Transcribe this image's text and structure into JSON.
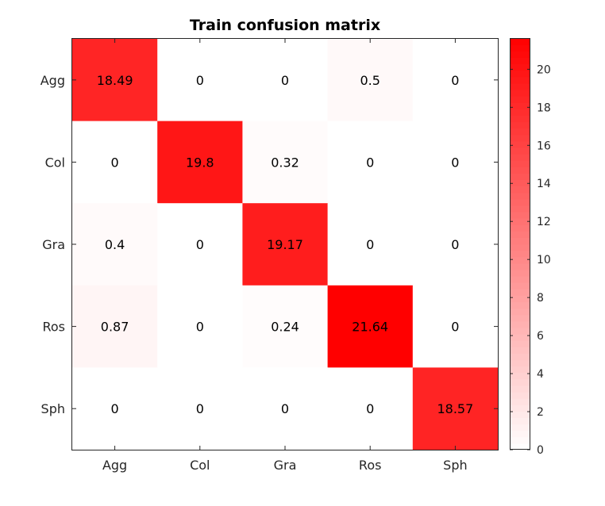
{
  "chart_data": {
    "type": "heatmap",
    "title": "Train confusion matrix",
    "rows": [
      "Agg",
      "Col",
      "Gra",
      "Ros",
      "Sph"
    ],
    "columns": [
      "Agg",
      "Col",
      "Gra",
      "Ros",
      "Sph"
    ],
    "values": [
      [
        18.49,
        0,
        0,
        0.5,
        0
      ],
      [
        0,
        19.8,
        0.32,
        0,
        0
      ],
      [
        0.4,
        0,
        19.17,
        0,
        0
      ],
      [
        0.87,
        0,
        0.24,
        21.64,
        0
      ],
      [
        0,
        0,
        0,
        0,
        18.57
      ]
    ],
    "value_labels": [
      [
        "18.49",
        "0",
        "0",
        "0.5",
        "0"
      ],
      [
        "0",
        "19.8",
        "0.32",
        "0",
        "0"
      ],
      [
        "0.4",
        "0",
        "19.17",
        "0",
        "0"
      ],
      [
        "0.87",
        "0",
        "0.24",
        "21.64",
        "0"
      ],
      [
        "0",
        "0",
        "0",
        "0",
        "18.57"
      ]
    ],
    "colorbar": {
      "range": [
        0,
        21.64
      ],
      "ticks": [
        "0",
        "2",
        "4",
        "6",
        "8",
        "10",
        "12",
        "14",
        "16",
        "18",
        "20"
      ],
      "low_color": "#ffffff",
      "high_color": "#ff0000"
    },
    "grid": false
  }
}
